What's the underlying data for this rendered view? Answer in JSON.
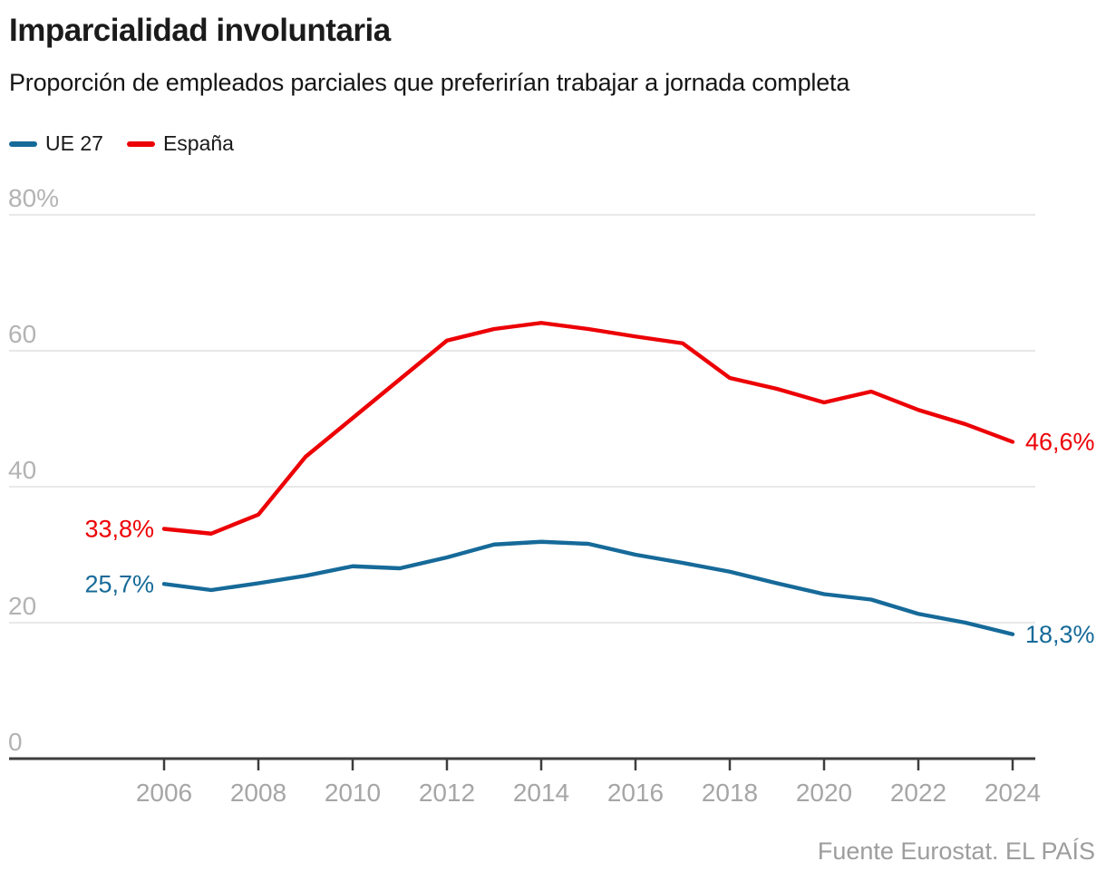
{
  "header": {
    "title": "Imparcialidad involuntaria",
    "subtitle": "Proporción de empleados parciales que preferirían trabajar a jornada completa"
  },
  "legend": {
    "items": [
      {
        "label": "UE 27"
      },
      {
        "label": "España"
      }
    ]
  },
  "footer": {
    "source": "Fuente Eurostat. EL PAÍS"
  },
  "chart_data": {
    "type": "line",
    "title": "Imparcialidad involuntaria",
    "subtitle": "Proporción de empleados parciales que preferirían trabajar a jornada completa",
    "x": [
      2006,
      2007,
      2008,
      2009,
      2010,
      2011,
      2012,
      2013,
      2014,
      2015,
      2016,
      2017,
      2018,
      2019,
      2020,
      2021,
      2022,
      2023,
      2024
    ],
    "series": [
      {
        "name": "UE 27",
        "color": "#166a99",
        "values": [
          25.7,
          24.8,
          25.8,
          26.9,
          28.3,
          28.0,
          29.6,
          31.5,
          31.9,
          31.6,
          30.0,
          28.8,
          27.5,
          25.8,
          24.2,
          23.4,
          21.3,
          20.0,
          18.3
        ]
      },
      {
        "name": "España",
        "color": "#ec0005",
        "values": [
          33.8,
          33.1,
          35.9,
          44.4,
          50.1,
          55.8,
          61.5,
          63.2,
          64.1,
          63.2,
          62.1,
          61.1,
          56.0,
          54.4,
          52.4,
          54.0,
          51.3,
          49.2,
          46.6
        ]
      }
    ],
    "ylim": [
      0,
      80
    ],
    "xlim": [
      2006,
      2024
    ],
    "grid": "horizontal",
    "legend_position": "top-left",
    "yticks": [
      {
        "value": 0,
        "label": "0"
      },
      {
        "value": 20,
        "label": "20"
      },
      {
        "value": 40,
        "label": "40"
      },
      {
        "value": 60,
        "label": "60"
      },
      {
        "value": 80,
        "label": "80%"
      }
    ],
    "xticks": [
      {
        "value": 2006,
        "label": "2006"
      },
      {
        "value": 2008,
        "label": "2008"
      },
      {
        "value": 2010,
        "label": "2010"
      },
      {
        "value": 2012,
        "label": "2012"
      },
      {
        "value": 2014,
        "label": "2014"
      },
      {
        "value": 2016,
        "label": "2016"
      },
      {
        "value": 2018,
        "label": "2018"
      },
      {
        "value": 2020,
        "label": "2020"
      },
      {
        "value": 2022,
        "label": "2022"
      },
      {
        "value": 2024,
        "label": "2024"
      }
    ],
    "annotations": [
      {
        "text": "33,8%",
        "series": "España",
        "year": 2006,
        "value": 33.8,
        "side": "left"
      },
      {
        "text": "25,7%",
        "series": "UE 27",
        "year": 2006,
        "value": 25.7,
        "side": "left"
      },
      {
        "text": "46,6%",
        "series": "España",
        "year": 2024,
        "value": 46.6,
        "side": "right"
      },
      {
        "text": "18,3%",
        "series": "UE 27",
        "year": 2024,
        "value": 18.3,
        "side": "right"
      }
    ]
  }
}
